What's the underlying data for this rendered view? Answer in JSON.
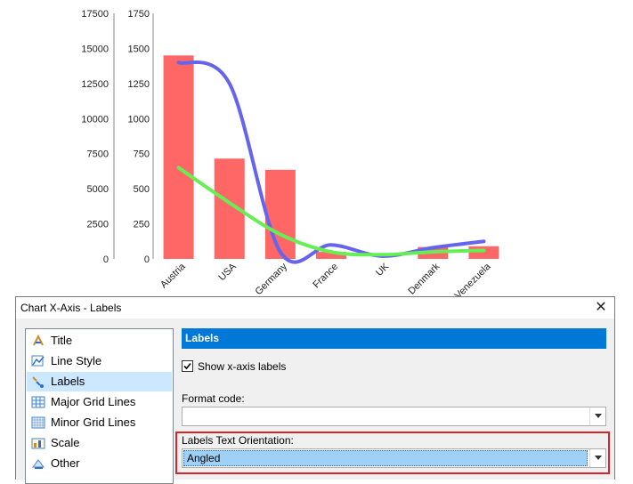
{
  "chart_data": {
    "type": "bar",
    "categories": [
      "Austria",
      "USA",
      "Germany",
      "France",
      "UK",
      "Denmark",
      "Venezuela"
    ],
    "series": [
      {
        "kind": "bar",
        "color": "#ff6666",
        "axis": "left",
        "values": [
          14500,
          7150,
          6350,
          500,
          0,
          850,
          900
        ]
      },
      {
        "kind": "line",
        "color": "#6464ee",
        "axis": "right",
        "values": [
          1400,
          1250,
          50,
          100,
          20,
          80,
          125
        ]
      },
      {
        "kind": "line",
        "color": "#66ee55",
        "axis": "right",
        "values": [
          650,
          400,
          175,
          50,
          30,
          50,
          60
        ]
      }
    ],
    "y_left": {
      "ticks": [
        "0",
        "2500",
        "5000",
        "7500",
        "10000",
        "12500",
        "15000",
        "17500"
      ],
      "ylim": [
        0,
        17500
      ]
    },
    "y_right": {
      "ticks": [
        "0",
        "250",
        "500",
        "750",
        "1000",
        "1250",
        "1500",
        "1750"
      ],
      "ylim": [
        0,
        1750
      ]
    },
    "x_tick_rotation_deg": -45,
    "grid": false
  },
  "dialog": {
    "title": "Chart X-Axis - Labels",
    "close_glyph": "✕",
    "nav": [
      {
        "label": "Title",
        "icon": "title-icon"
      },
      {
        "label": "Line Style",
        "icon": "line-style-icon"
      },
      {
        "label": "Labels",
        "icon": "labels-icon",
        "selected": true
      },
      {
        "label": "Major Grid Lines",
        "icon": "major-grid-icon"
      },
      {
        "label": "Minor Grid Lines",
        "icon": "minor-grid-icon"
      },
      {
        "label": "Scale",
        "icon": "scale-icon"
      },
      {
        "label": "Other",
        "icon": "other-icon"
      }
    ],
    "panel_header": "Labels",
    "show_labels": {
      "label": "Show x-axis labels",
      "checked": true
    },
    "format_code": {
      "label": "Format code:",
      "value": ""
    },
    "orientation": {
      "label": "Labels Text Orientation:",
      "value": "Angled"
    },
    "highlight_color": "#d9252a",
    "selection_color": "#0078d7"
  }
}
